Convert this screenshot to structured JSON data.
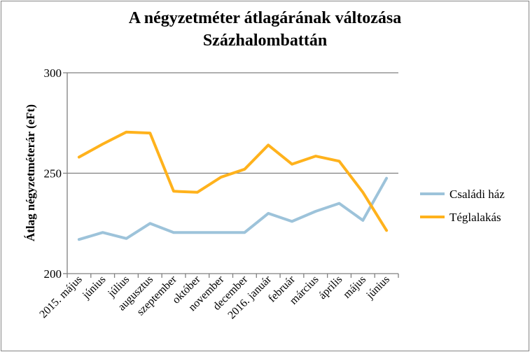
{
  "chart_data": {
    "type": "line",
    "title_line1": "A négyzetméter átlagárának változása",
    "title_line2": "Százhalombattán",
    "xlabel": "",
    "ylabel": "Átlag négyzetméterár (eFt)",
    "ylim": [
      200,
      300
    ],
    "yticks": [
      200,
      250,
      300
    ],
    "grid": true,
    "legend_position": "right",
    "categories": [
      "2015. május",
      "június",
      "július",
      "augusztus",
      "szeptember",
      "október",
      "november",
      "december",
      "2016. január",
      "február",
      "március",
      "április",
      "május",
      "június"
    ],
    "series": [
      {
        "name": "Családi ház",
        "color": "#9DC3DA",
        "values": [
          217,
          220.5,
          217.5,
          225,
          220.5,
          220.5,
          220.5,
          220.5,
          230,
          226,
          231,
          235,
          226.5,
          247.5
        ]
      },
      {
        "name": "Téglalakás",
        "color": "#FFB21C",
        "values": [
          258,
          264.5,
          270.5,
          270,
          241,
          240.5,
          248,
          252,
          264,
          254.5,
          258.5,
          256,
          240.5,
          221.5
        ]
      }
    ]
  }
}
